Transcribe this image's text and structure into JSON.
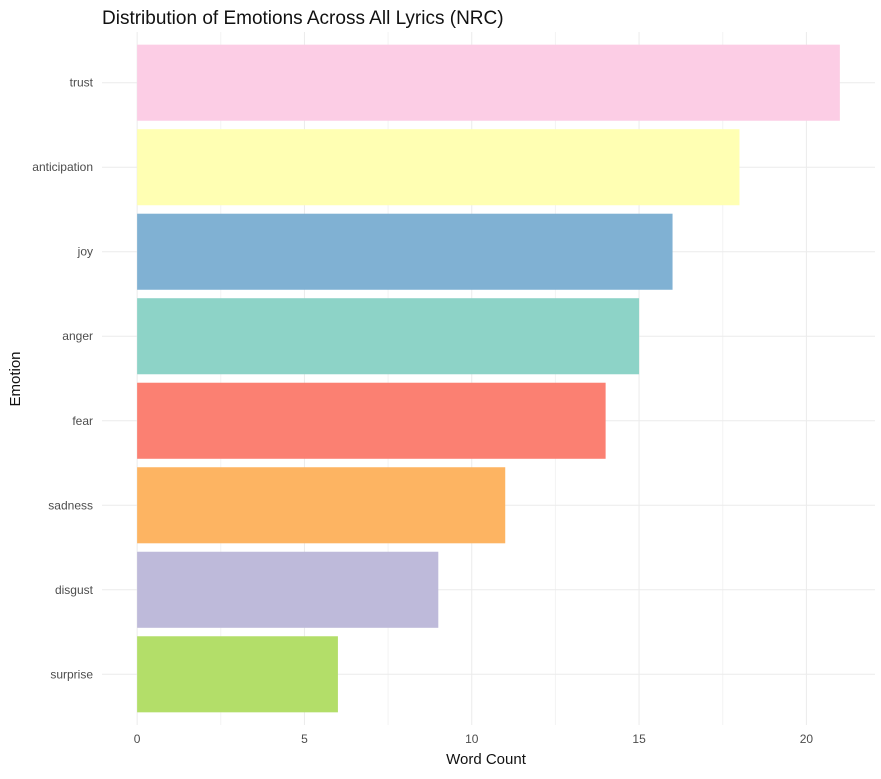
{
  "chart_data": {
    "type": "bar",
    "orientation": "horizontal",
    "title": "Distribution of Emotions Across All Lyrics (NRC)",
    "xlabel": "Word Count",
    "ylabel": "Emotion",
    "categories": [
      "trust",
      "anticipation",
      "joy",
      "anger",
      "fear",
      "sadness",
      "disgust",
      "surprise"
    ],
    "values": [
      21,
      18,
      16,
      15,
      14,
      11,
      9,
      6
    ],
    "colors": [
      "#FCCDE5",
      "#FFFFB3",
      "#80B1D3",
      "#8DD3C7",
      "#FB8072",
      "#FDB462",
      "#BEBADA",
      "#B3DE69"
    ],
    "xlim": [
      0,
      21
    ],
    "xticks": [
      "0",
      "5",
      "10",
      "15",
      "20"
    ],
    "grid": true,
    "legend": "none"
  }
}
